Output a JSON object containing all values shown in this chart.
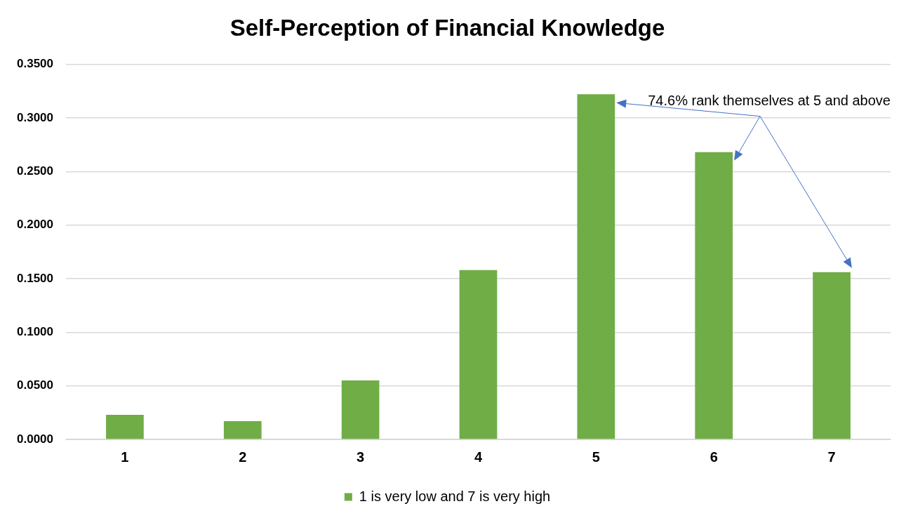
{
  "chart_data": {
    "type": "bar",
    "title": "Self-Perception of Financial Knowledge",
    "categories": [
      "1",
      "2",
      "3",
      "4",
      "5",
      "6",
      "7"
    ],
    "series": [
      {
        "name": "1 is very low and 7 is very high",
        "color": "#70ad47",
        "values": [
          0.023,
          0.017,
          0.055,
          0.158,
          0.322,
          0.268,
          0.156
        ]
      }
    ],
    "ylim": [
      0,
      0.35
    ],
    "yticks": [
      {
        "value": 0,
        "label": "0.0000"
      },
      {
        "value": 0.05,
        "label": "0.0500"
      },
      {
        "value": 0.1,
        "label": "0.1000"
      },
      {
        "value": 0.15,
        "label": "0.1500"
      },
      {
        "value": 0.2,
        "label": "0.2000"
      },
      {
        "value": 0.25,
        "label": "0.2500"
      },
      {
        "value": 0.3,
        "label": "0.3000"
      },
      {
        "value": 0.35,
        "label": "0.3500"
      }
    ],
    "grid": "y",
    "legend": "bottom",
    "annotations": [
      "74.6% rank themselves at 5 and above"
    ]
  }
}
